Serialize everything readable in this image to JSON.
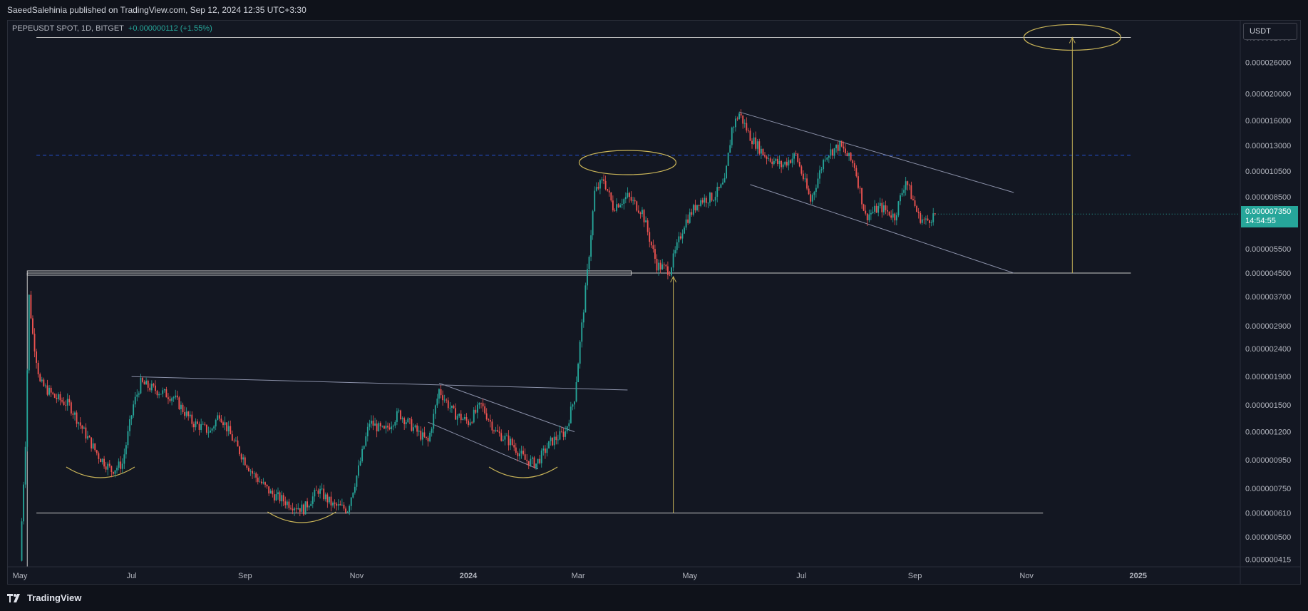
{
  "header": {
    "publish_line": "SaeedSalehinia published on TradingView.com, Sep 12, 2024 12:35 UTC+3:30"
  },
  "symbol": {
    "title": "PEPEUSDT SPOT, 1D, BITGET",
    "change": "+0.000000112 (+1.55%)"
  },
  "currency": "USDT",
  "last_price": {
    "value": "0.000007350",
    "countdown": "14:54:55"
  },
  "footer": {
    "brand": "TradingView",
    "logo_icon": "tradingview-logo-icon"
  },
  "colors": {
    "up": "#26a69a",
    "down": "#ef5350",
    "annotation": "#c9b458",
    "trendline": "#8a90a8",
    "grid_dashed": "#2962ff",
    "background": "#131722"
  },
  "chart_data": {
    "type": "candlestick",
    "symbol": "PEPEUSDT SPOT",
    "interval": "1D",
    "exchange": "BITGET",
    "y_scale": "log",
    "x_ticks": [
      "May",
      "Jul",
      "Sep",
      "Nov",
      "2024",
      "Mar",
      "May",
      "Jul",
      "Sep",
      "Nov",
      "2025"
    ],
    "y_ticks": [
      3.2e-05,
      2.6e-05,
      2e-05,
      1.6e-05,
      1.3e-05,
      1.05e-05,
      8.5e-06,
      5.5e-06,
      4.5e-06,
      3.7e-06,
      2.9e-06,
      2.4e-06,
      1.9e-06,
      1.5e-06,
      1.2e-06,
      9.5e-07,
      7.5e-07,
      6.1e-07,
      5e-07,
      4.15e-07
    ],
    "y_tick_labels": [
      "0.000032000",
      "0.000026000",
      "0.000020000",
      "0.000016000",
      "0.000013000",
      "0.000010500",
      "0.000008500",
      "0.000005500",
      "0.000004500",
      "0.000003700",
      "0.000002900",
      "0.000002400",
      "0.000001900",
      "0.000001500",
      "0.000001200",
      "0.000000950",
      "0.000000750",
      "0.000000610",
      "0.000000500",
      "0.000000415"
    ],
    "y_range": [
      3.9e-07,
      3.7e-05
    ],
    "x_range": [
      "2023-04-24",
      "2025-02-25"
    ],
    "last_price": 7.35e-06,
    "price_path": [
      [
        "2023-05-01",
        4.1e-07
      ],
      [
        "2023-05-04",
        1.1e-06
      ],
      [
        "2023-05-06",
        3.7e-06
      ],
      [
        "2023-05-08",
        2.7e-06
      ],
      [
        "2023-05-12",
        1.8e-06
      ],
      [
        "2023-05-20",
        1.6e-06
      ],
      [
        "2023-05-28",
        1.5e-06
      ],
      [
        "2023-06-05",
        1.2e-06
      ],
      [
        "2023-06-13",
        9.8e-07
      ],
      [
        "2023-06-20",
        8.7e-07
      ],
      [
        "2023-06-26",
        9.2e-07
      ],
      [
        "2023-07-02",
        1.5e-06
      ],
      [
        "2023-07-06",
        1.8e-06
      ],
      [
        "2023-07-14",
        1.7e-06
      ],
      [
        "2023-07-24",
        1.6e-06
      ],
      [
        "2023-08-03",
        1.3e-06
      ],
      [
        "2023-08-13",
        1.2e-06
      ],
      [
        "2023-08-18",
        1.4e-06
      ],
      [
        "2023-08-26",
        1.1e-06
      ],
      [
        "2023-09-05",
        8.5e-07
      ],
      [
        "2023-09-15",
        7.2e-07
      ],
      [
        "2023-09-25",
        6.6e-07
      ],
      [
        "2023-10-03",
        6.3e-07
      ],
      [
        "2023-10-11",
        7.4e-07
      ],
      [
        "2023-10-19",
        6.5e-07
      ],
      [
        "2023-10-27",
        6.3e-07
      ],
      [
        "2023-11-02",
        8.8e-07
      ],
      [
        "2023-11-08",
        1.3e-06
      ],
      [
        "2023-11-16",
        1.2e-06
      ],
      [
        "2023-11-24",
        1.4e-06
      ],
      [
        "2023-12-04",
        1.2e-06
      ],
      [
        "2023-12-10",
        1.1e-06
      ],
      [
        "2023-12-16",
        1.7e-06
      ],
      [
        "2023-12-24",
        1.4e-06
      ],
      [
        "2024-01-01",
        1.3e-06
      ],
      [
        "2024-01-08",
        1.5e-06
      ],
      [
        "2024-01-16",
        1.2e-06
      ],
      [
        "2024-01-24",
        1.1e-06
      ],
      [
        "2024-02-01",
        9.5e-07
      ],
      [
        "2024-02-07",
        9.2e-07
      ],
      [
        "2024-02-15",
        1.1e-06
      ],
      [
        "2024-02-23",
        1.2e-06
      ],
      [
        "2024-02-28",
        1.6e-06
      ],
      [
        "2024-03-03",
        2.9e-06
      ],
      [
        "2024-03-06",
        4.5e-06
      ],
      [
        "2024-03-10",
        8.8e-06
      ],
      [
        "2024-03-15",
        9.8e-06
      ],
      [
        "2024-03-20",
        7.8e-06
      ],
      [
        "2024-03-28",
        8.5e-06
      ],
      [
        "2024-04-05",
        7.5e-06
      ],
      [
        "2024-04-13",
        4.8e-06
      ],
      [
        "2024-04-20",
        4.6e-06
      ],
      [
        "2024-04-28",
        6.8e-06
      ],
      [
        "2024-05-06",
        8.2e-06
      ],
      [
        "2024-05-14",
        8.5e-06
      ],
      [
        "2024-05-20",
        9.5e-06
      ],
      [
        "2024-05-24",
        1.5e-05
      ],
      [
        "2024-05-28",
        1.7e-05
      ],
      [
        "2024-06-03",
        1.4e-05
      ],
      [
        "2024-06-11",
        1.2e-05
      ],
      [
        "2024-06-20",
        1.1e-05
      ],
      [
        "2024-06-28",
        1.2e-05
      ],
      [
        "2024-07-06",
        8.2e-06
      ],
      [
        "2024-07-14",
        1.2e-05
      ],
      [
        "2024-07-22",
        1.3e-05
      ],
      [
        "2024-07-30",
        1.1e-05
      ],
      [
        "2024-08-05",
        7.2e-06
      ],
      [
        "2024-08-13",
        7.8e-06
      ],
      [
        "2024-08-21",
        7.2e-06
      ],
      [
        "2024-08-27",
        9.8e-06
      ],
      [
        "2024-09-03",
        7.2e-06
      ],
      [
        "2024-09-07",
        6.9e-06
      ],
      [
        "2024-09-12",
        7.35e-06
      ]
    ],
    "annotations": {
      "horizontal_levels": [
        3.2e-05,
        4.5e-06,
        6.1e-07
      ],
      "dashed_level": 1.2e-05,
      "target_ellipse_price": 3.2e-05,
      "peak_ellipse_price": 1.12e-05
    }
  }
}
